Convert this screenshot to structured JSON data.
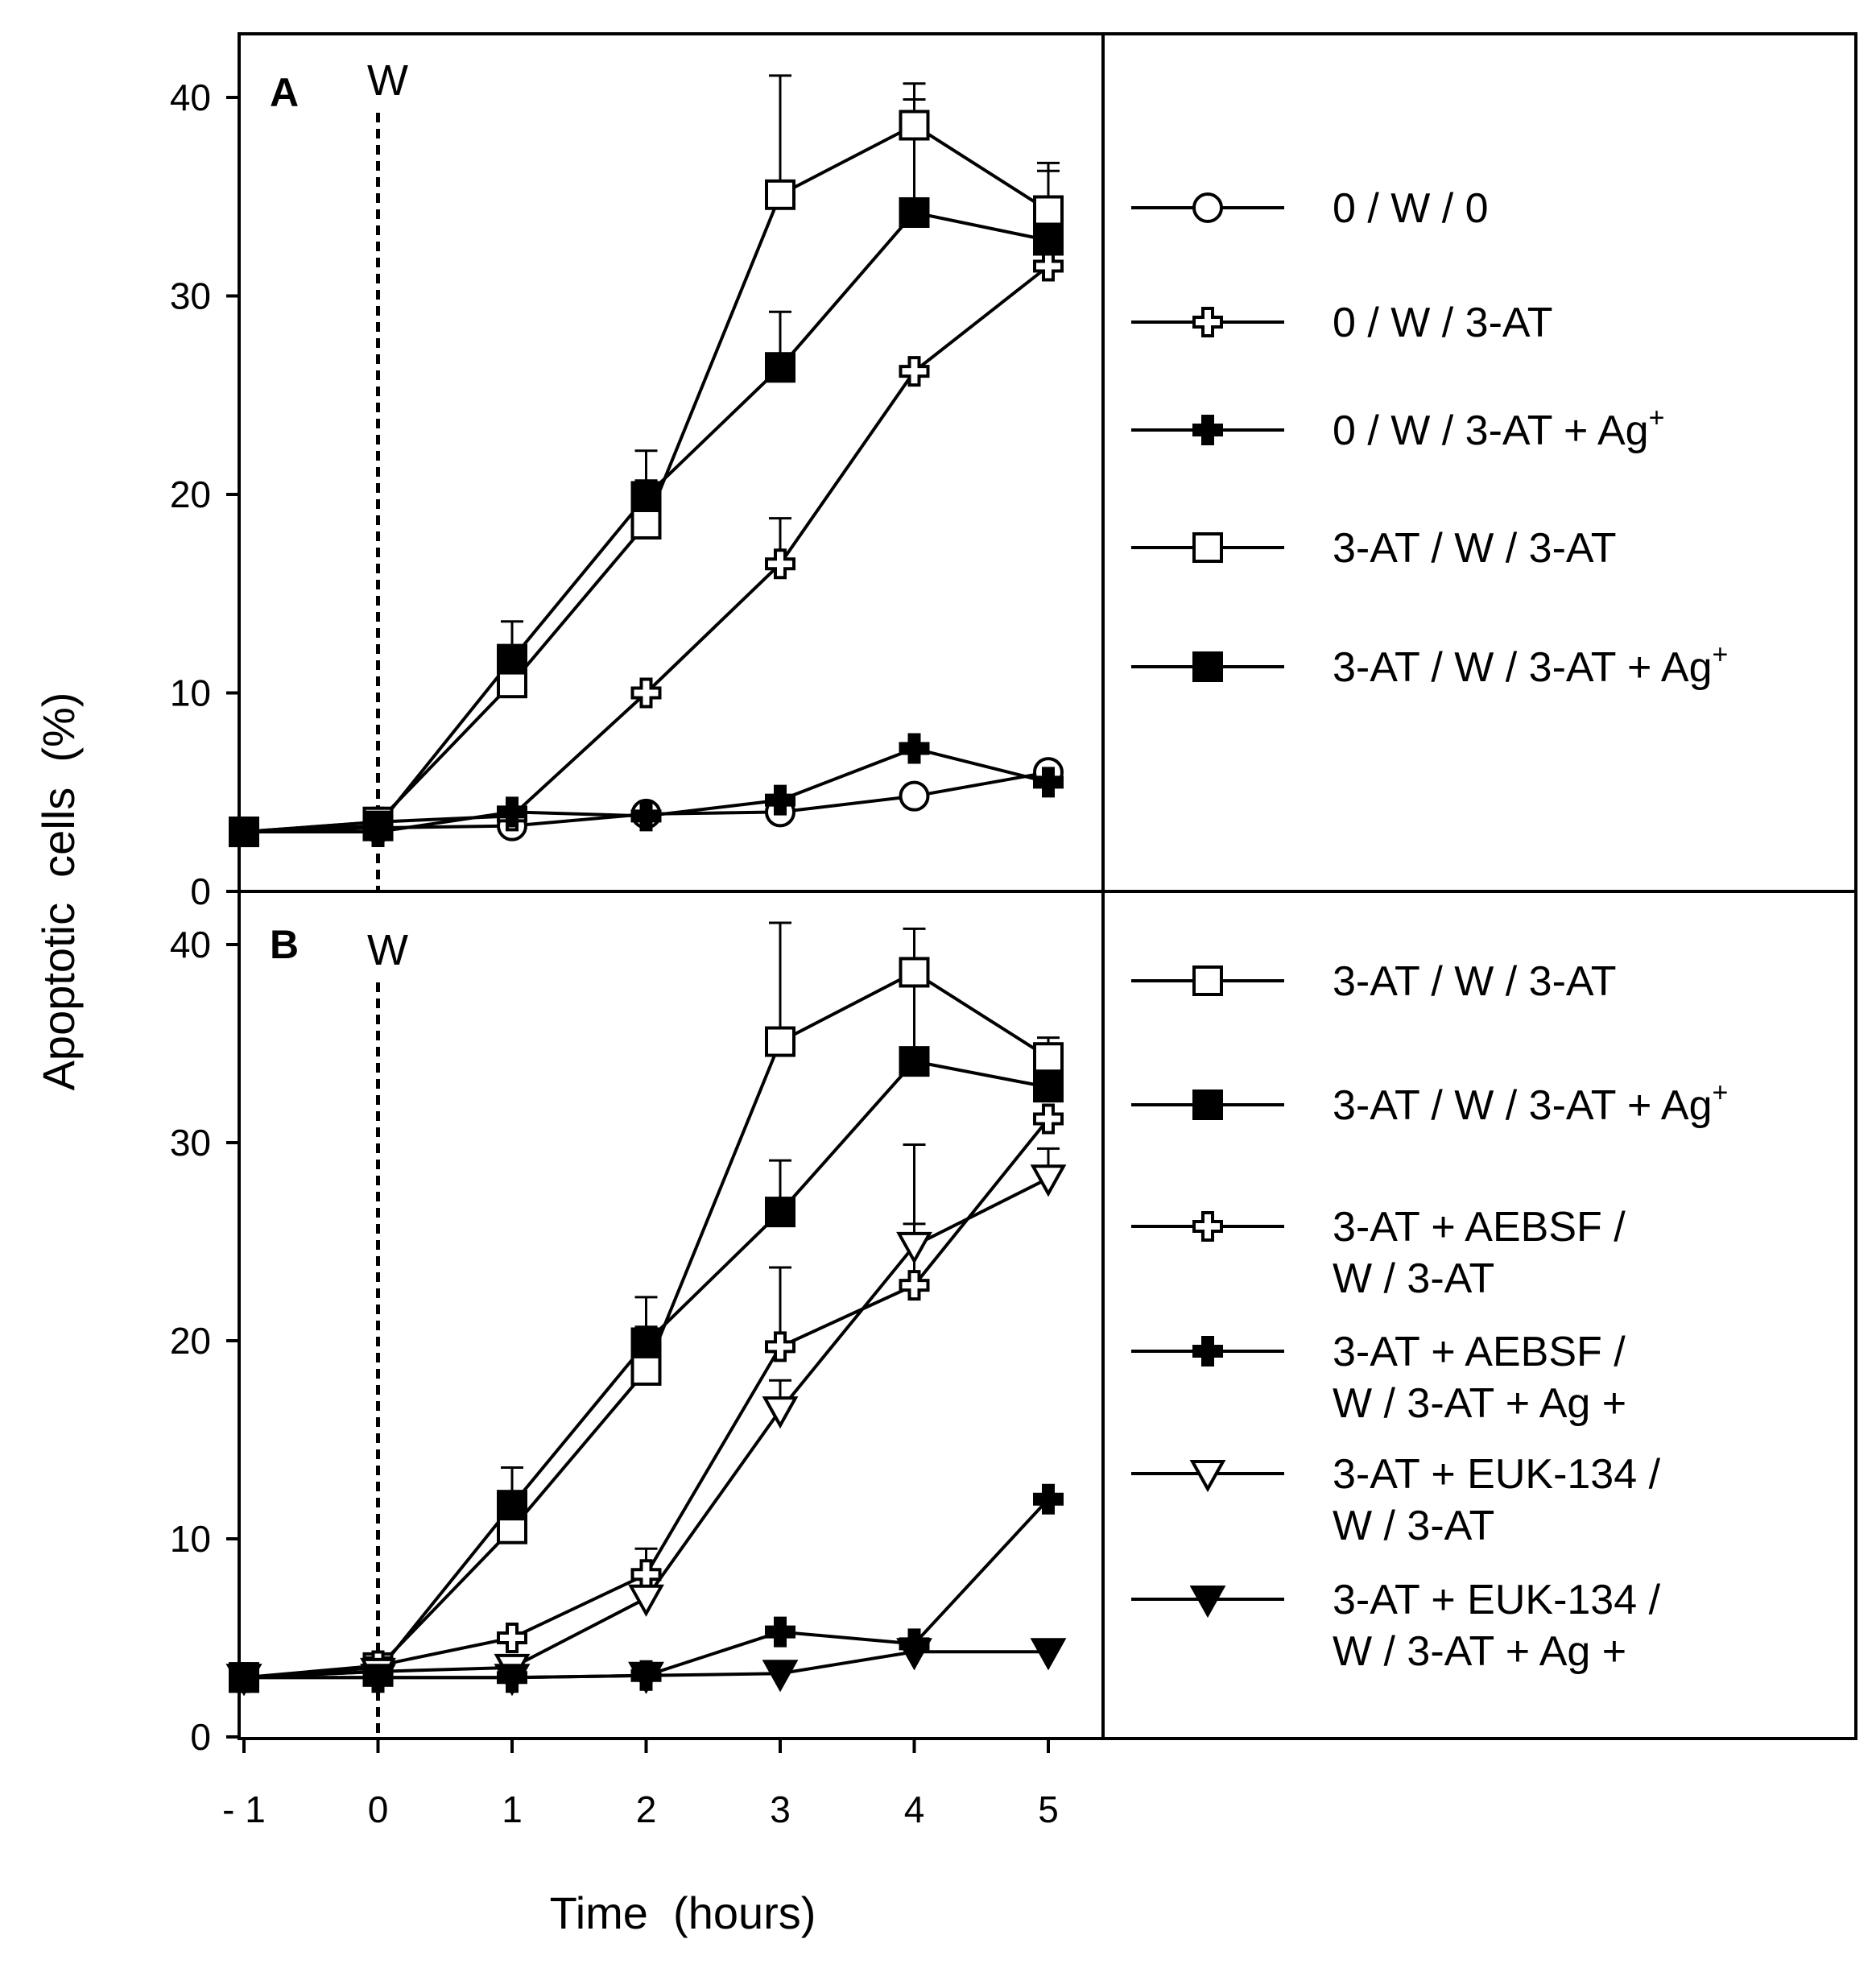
{
  "chart_data": [
    {
      "panel": "A",
      "type": "line",
      "marker_label": "W",
      "xlabel": "Time  (hours)",
      "ylabel": "Apoptotic  cells  (%)",
      "x": [
        -1,
        0,
        1,
        2,
        3,
        4,
        5
      ],
      "x_tick_labels": [
        "- 1",
        "0",
        "1",
        "2",
        "3",
        "4",
        "5"
      ],
      "y_ticks": [
        0,
        10,
        20,
        30,
        40
      ],
      "ylim": [
        0,
        40
      ],
      "series": [
        {
          "name": "0 / W / 0",
          "label": "0 / W / 0",
          "sup": "",
          "marker": "circle-open",
          "values": [
            3,
            3.2,
            3.3,
            3.9,
            4,
            4.8,
            6
          ],
          "err": [
            0,
            0,
            0,
            0,
            0,
            0,
            0
          ]
        },
        {
          "name": "0 / W / 3-AT",
          "label": "0 / W / 3-AT",
          "sup": "",
          "marker": "cross-open",
          "values": [
            3,
            3.5,
            3.8,
            10,
            16.5,
            26.2,
            31.5
          ],
          "err": [
            0,
            0,
            0,
            0,
            2.3,
            0,
            5.2
          ]
        },
        {
          "name": "0 / W / 3-AT + Ag+",
          "label": "0 / W / 3-AT + Ag",
          "sup": "+",
          "marker": "cross-filled",
          "values": [
            3,
            3,
            4,
            3.8,
            4.6,
            7.2,
            5.5
          ],
          "err": [
            0,
            0,
            0,
            0,
            0,
            0,
            0
          ]
        },
        {
          "name": "3-AT / W / 3-AT",
          "label": "3-AT / W / 3-AT",
          "sup": "",
          "marker": "square-open",
          "values": [
            3,
            3.5,
            10.5,
            18.5,
            35.1,
            38.6,
            34.3
          ],
          "err": [
            0,
            0,
            0,
            2.2,
            6,
            2.1,
            2
          ]
        },
        {
          "name": "3-AT / W / 3-AT + Ag+",
          "label": "3-AT / W / 3-AT + Ag",
          "sup": "+",
          "marker": "square-filled",
          "values": [
            3,
            3.3,
            11.7,
            19.9,
            26.4,
            34.2,
            32.8
          ],
          "err": [
            0,
            0,
            1.9,
            2.3,
            2.8,
            5.7,
            0
          ]
        }
      ]
    },
    {
      "panel": "B",
      "type": "line",
      "marker_label": "W",
      "xlabel": "Time  (hours)",
      "ylabel": "Apoptotic  cells  (%)",
      "x": [
        -1,
        0,
        1,
        2,
        3,
        4,
        5
      ],
      "x_tick_labels": [
        "- 1",
        "0",
        "1",
        "2",
        "3",
        "4",
        "5"
      ],
      "y_ticks": [
        0,
        10,
        20,
        30,
        40
      ],
      "ylim": [
        0,
        40
      ],
      "series": [
        {
          "name": "3-AT / W / 3-AT",
          "label": [
            "3-AT / W / 3-AT"
          ],
          "sup": "",
          "marker": "square-open",
          "values": [
            3,
            3.5,
            10.5,
            18.5,
            35.1,
            38.6,
            34.3
          ],
          "err": [
            0,
            0,
            0,
            2.2,
            6,
            2.2,
            1
          ]
        },
        {
          "name": "3-AT / W / 3-AT + Ag+",
          "label": [
            "3-AT / W / 3-AT + Ag"
          ],
          "sup": "+",
          "marker": "square-filled",
          "values": [
            3,
            3.3,
            11.7,
            19.9,
            26.5,
            34.1,
            32.8
          ],
          "err": [
            0,
            0,
            1.9,
            2.3,
            2.6,
            4.5,
            0
          ]
        },
        {
          "name": "3-AT + AEBSF / W / 3-AT",
          "label": [
            "3-AT + AEBSF /",
            "W / 3-AT"
          ],
          "sup": "",
          "marker": "cross-open",
          "values": [
            3,
            3.6,
            5,
            8.2,
            19.7,
            22.8,
            31.2
          ],
          "err": [
            0,
            0,
            0,
            1.3,
            4,
            3.1,
            0
          ]
        },
        {
          "name": "3-AT + AEBSF / W / 3-AT + Ag+",
          "label": [
            "3-AT + AEBSF /",
            "W / 3-AT + Ag +"
          ],
          "sup": "",
          "marker": "cross-filled",
          "values": [
            3,
            3,
            3,
            3.1,
            5.3,
            4.7,
            12
          ],
          "err": [
            0,
            0,
            0,
            0,
            0,
            0,
            0
          ]
        },
        {
          "name": "3-AT + EUK-134 / W / 3-AT",
          "label": [
            "3-AT + EUK-134 /",
            "W / 3-AT"
          ],
          "sup": "",
          "marker": "triangle-down-open",
          "values": [
            3,
            3.3,
            3.5,
            7,
            16.5,
            24.8,
            28.2
          ],
          "err": [
            0,
            0,
            0,
            0,
            1.5,
            5.1,
            1.5
          ]
        },
        {
          "name": "3-AT + EUK-134 / W / 3-AT + Ag+",
          "label": [
            "3-AT + EUK-134 /",
            "W / 3-AT + Ag +"
          ],
          "sup": "",
          "marker": "triangle-down-filled",
          "values": [
            3,
            3,
            3,
            3.1,
            3.2,
            4.3,
            4.3
          ],
          "err": [
            0,
            0,
            0,
            0,
            0,
            0,
            0
          ]
        }
      ]
    }
  ]
}
